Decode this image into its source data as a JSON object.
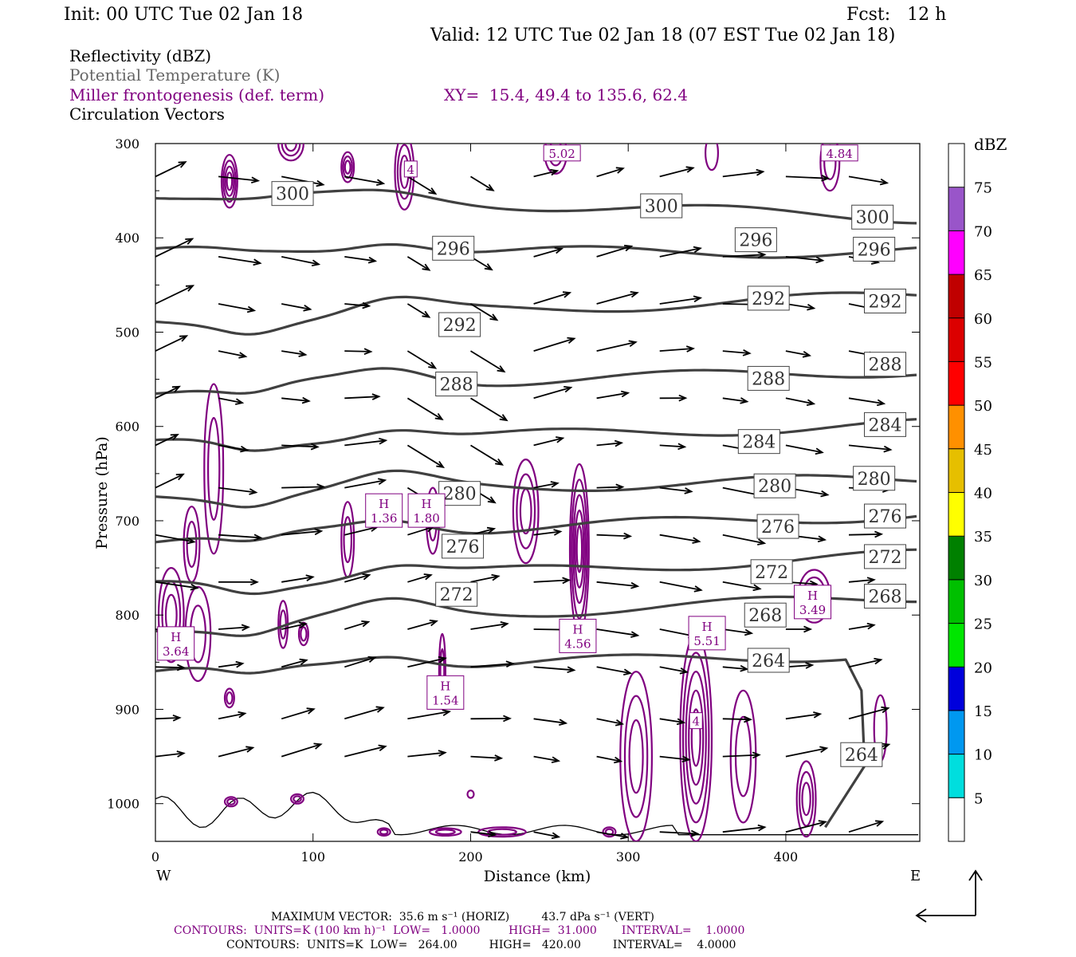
{
  "header": {
    "init": "Init: 00 UTC Tue 02 Jan 18",
    "fcst": "Fcst:   12 h",
    "valid": "Valid: 12 UTC Tue 02 Jan 18 (07 EST Tue 02 Jan 18)",
    "field1": "Reflectivity (dBZ)",
    "field2": "Potential Temperature (K)",
    "field3": "Miller frontogenesis (def. term)",
    "field4": "Circulation Vectors",
    "xy": "XY=  15.4, 49.4 to 135.6, 62.4"
  },
  "colors": {
    "theta": "#404040",
    "frontogenesis": "#800080",
    "vectors": "#000000"
  },
  "chart_data": {
    "type": "cross-section",
    "xlabel": "Distance (km)",
    "ylabel": "Pressure (hPa)",
    "xlim": [
      0,
      485
    ],
    "ylim": [
      300,
      1040
    ],
    "x_ticks": [
      "0",
      "100",
      "200",
      "300",
      "400"
    ],
    "y_ticks": [
      "300",
      "400",
      "500",
      "600",
      "700",
      "800",
      "900",
      "1000"
    ],
    "x_left_label": "W",
    "x_right_label": "E",
    "theta_labels": [
      {
        "text": "300",
        "x": 87,
        "p": 353
      },
      {
        "text": "300",
        "x": 321,
        "p": 366
      },
      {
        "text": "300",
        "x": 455,
        "p": 378
      },
      {
        "text": "296",
        "x": 189,
        "p": 411
      },
      {
        "text": "296",
        "x": 381,
        "p": 402
      },
      {
        "text": "296",
        "x": 456,
        "p": 412
      },
      {
        "text": "292",
        "x": 193,
        "p": 492
      },
      {
        "text": "292",
        "x": 389,
        "p": 464
      },
      {
        "text": "292",
        "x": 463,
        "p": 467
      },
      {
        "text": "288",
        "x": 191,
        "p": 555
      },
      {
        "text": "288",
        "x": 389,
        "p": 549
      },
      {
        "text": "288",
        "x": 463,
        "p": 534
      },
      {
        "text": "284",
        "x": 383,
        "p": 616
      },
      {
        "text": "284",
        "x": 463,
        "p": 598
      },
      {
        "text": "280",
        "x": 193,
        "p": 671
      },
      {
        "text": "280",
        "x": 393,
        "p": 663
      },
      {
        "text": "280",
        "x": 456,
        "p": 655
      },
      {
        "text": "276",
        "x": 195,
        "p": 727
      },
      {
        "text": "276",
        "x": 395,
        "p": 706
      },
      {
        "text": "276",
        "x": 463,
        "p": 695
      },
      {
        "text": "272",
        "x": 191,
        "p": 778
      },
      {
        "text": "272",
        "x": 391,
        "p": 754
      },
      {
        "text": "272",
        "x": 463,
        "p": 738
      },
      {
        "text": "268",
        "x": 387,
        "p": 800
      },
      {
        "text": "268",
        "x": 463,
        "p": 780
      },
      {
        "text": "264",
        "x": 389,
        "p": 848
      },
      {
        "text": "264",
        "x": 448,
        "p": 948
      }
    ],
    "theta_values": [
      300,
      296,
      292,
      288,
      284,
      280,
      276,
      272,
      268,
      264
    ],
    "maxima": [
      {
        "label": "H",
        "value": "1.36",
        "x": 145,
        "p": 690
      },
      {
        "label": "H",
        "value": "1.80",
        "x": 172,
        "p": 690
      },
      {
        "label": "H",
        "value": "3.64",
        "x": 13,
        "p": 831
      },
      {
        "label": "H",
        "value": "1.54",
        "x": 184,
        "p": 883
      },
      {
        "label": "H",
        "value": "4.56",
        "x": 268,
        "p": 823
      },
      {
        "label": "H",
        "value": "5.51",
        "x": 350,
        "p": 820
      },
      {
        "label": "H",
        "value": "3.49",
        "x": 417,
        "p": 787
      },
      {
        "label": "",
        "value": "5.02",
        "x": 258,
        "p": 310
      },
      {
        "label": "",
        "value": "4.84",
        "x": 434,
        "p": 310
      },
      {
        "label": "",
        "value": "4",
        "x": 162,
        "p": 327
      },
      {
        "label": "",
        "value": "4",
        "x": 343,
        "p": 912
      }
    ],
    "colorbar": {
      "title": "dBZ",
      "labels": [
        "5",
        "10",
        "15",
        "20",
        "25",
        "30",
        "35",
        "40",
        "45",
        "50",
        "55",
        "60",
        "65",
        "70",
        "75"
      ],
      "colors": [
        "#ffffff",
        "#00dede",
        "#0098f0",
        "#0000dc",
        "#00e600",
        "#00c000",
        "#008000",
        "#ffff00",
        "#e6bf00",
        "#ff9000",
        "#ff0000",
        "#dc0000",
        "#c00000",
        "#ff00ff",
        "#9955c9",
        "#ffffff"
      ]
    }
  },
  "footer": {
    "max_vector": "MAXIMUM VECTOR:  35.6 m s⁻¹ (HORIZ)         43.7 dPa s⁻¹ (VERT)",
    "contours1": "CONTOURS:  UNITS=K (100 km h)⁻¹  LOW=   1.0000        HIGH=  31.000       INTERVAL=    1.0000",
    "contours2": "CONTOURS:  UNITS=K  LOW=   264.00         HIGH=   420.00         INTERVAL=    4.0000"
  }
}
